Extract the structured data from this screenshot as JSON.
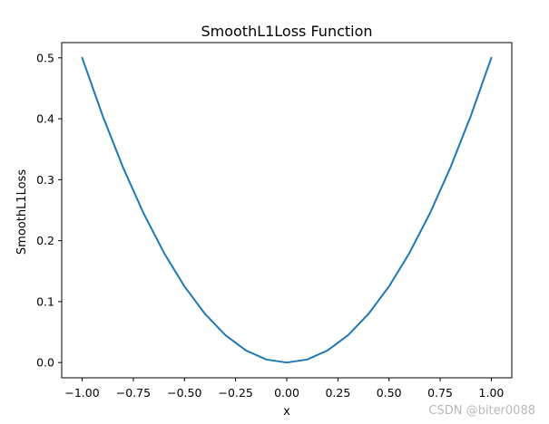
{
  "chart_data": {
    "type": "line",
    "title": "SmoothL1Loss Function",
    "xlabel": "x",
    "ylabel": "SmoothL1Loss",
    "xlim": [
      -1.1,
      1.1
    ],
    "ylim": [
      -0.025,
      0.525
    ],
    "x_ticks": [
      -1.0,
      -0.75,
      -0.5,
      -0.25,
      0.0,
      0.25,
      0.5,
      0.75,
      1.0
    ],
    "x_tick_labels": [
      "−1.00",
      "−0.75",
      "−0.50",
      "−0.25",
      "0.00",
      "0.25",
      "0.50",
      "0.75",
      "1.00"
    ],
    "y_ticks": [
      0.0,
      0.1,
      0.2,
      0.3,
      0.4,
      0.5
    ],
    "y_tick_labels": [
      "0.0",
      "0.1",
      "0.2",
      "0.3",
      "0.4",
      "0.5"
    ],
    "grid": false,
    "series": [
      {
        "color": "#1f77b4",
        "x": [
          -1.0,
          -0.9,
          -0.8,
          -0.7,
          -0.6,
          -0.5,
          -0.4,
          -0.3,
          -0.2,
          -0.1,
          0.0,
          0.1,
          0.2,
          0.3,
          0.4,
          0.5,
          0.6,
          0.7,
          0.8,
          0.9,
          1.0
        ],
        "y": [
          0.5,
          0.405,
          0.32,
          0.245,
          0.18,
          0.125,
          0.08,
          0.045,
          0.02,
          0.005,
          0.0,
          0.005,
          0.02,
          0.045,
          0.08,
          0.125,
          0.18,
          0.245,
          0.32,
          0.405,
          0.5
        ]
      }
    ]
  },
  "watermark": "CSDN @biter0088"
}
